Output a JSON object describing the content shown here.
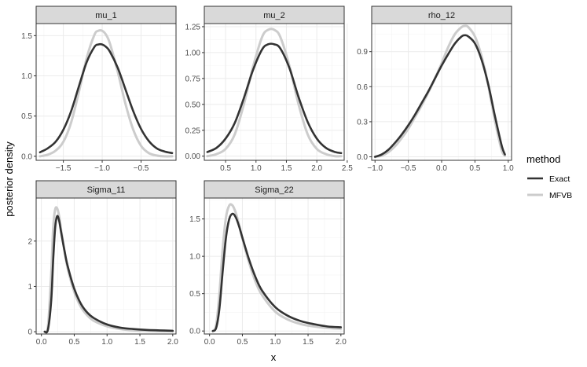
{
  "chart_data": {
    "type": "line",
    "xlabel": "x",
    "ylabel": "posterior density",
    "legend": {
      "title": "method",
      "placement": "right",
      "entries": [
        {
          "name": "Exact",
          "color": "#333333"
        },
        {
          "name": "MFVB",
          "color": "#cccccc"
        }
      ]
    },
    "grid": true,
    "panels": [
      {
        "title": "mu_1",
        "xlim": [
          -1.85,
          -0.05
        ],
        "ylim": [
          -0.05,
          1.65
        ],
        "xticks": [
          -1.5,
          -1.0,
          -0.5
        ],
        "xtick_labels": [
          "−1.5",
          "−1.0",
          "−0.5"
        ],
        "yticks": [
          0.0,
          0.5,
          1.0,
          1.5
        ],
        "ytick_labels": [
          "0.0",
          "0.5",
          "1.0",
          "1.5"
        ],
        "series": [
          {
            "name": "Exact",
            "x": [
              -1.8,
              -1.7,
              -1.6,
              -1.5,
              -1.4,
              -1.3,
              -1.2,
              -1.1,
              -1.05,
              -1.0,
              -0.95,
              -0.9,
              -0.8,
              -0.7,
              -0.6,
              -0.5,
              -0.4,
              -0.3,
              -0.2,
              -0.1
            ],
            "y": [
              0.05,
              0.1,
              0.18,
              0.33,
              0.56,
              0.87,
              1.17,
              1.36,
              1.39,
              1.39,
              1.36,
              1.3,
              1.1,
              0.83,
              0.56,
              0.34,
              0.19,
              0.1,
              0.06,
              0.04
            ]
          },
          {
            "name": "MFVB",
            "x": [
              -1.8,
              -1.7,
              -1.6,
              -1.5,
              -1.4,
              -1.3,
              -1.2,
              -1.1,
              -1.05,
              -1.0,
              -0.95,
              -0.9,
              -0.8,
              -0.7,
              -0.6,
              -0.5,
              -0.4,
              -0.3,
              -0.2,
              -0.1
            ],
            "y": [
              0.0,
              0.02,
              0.07,
              0.18,
              0.42,
              0.8,
              1.22,
              1.51,
              1.56,
              1.56,
              1.51,
              1.4,
              1.05,
              0.65,
              0.33,
              0.13,
              0.04,
              0.01,
              0.0,
              0.0
            ]
          }
        ]
      },
      {
        "title": "mu_2",
        "xlim": [
          0.15,
          2.45
        ],
        "ylim": [
          -0.04,
          1.28
        ],
        "xticks": [
          0.5,
          1.0,
          1.5,
          2.0,
          2.5
        ],
        "xtick_labels": [
          "0.5",
          "1.0",
          "1.5",
          "2.0",
          "2.5"
        ],
        "yticks": [
          0.0,
          0.25,
          0.5,
          0.75,
          1.0,
          1.25
        ],
        "ytick_labels": [
          "0.00",
          "0.25",
          "0.50",
          "0.75",
          "1.00",
          "1.25"
        ],
        "series": [
          {
            "name": "Exact",
            "x": [
              0.2,
              0.35,
              0.5,
              0.65,
              0.8,
              0.95,
              1.1,
              1.2,
              1.3,
              1.4,
              1.55,
              1.7,
              1.85,
              2.0,
              2.15,
              2.3,
              2.4
            ],
            "y": [
              0.04,
              0.08,
              0.17,
              0.32,
              0.56,
              0.83,
              1.03,
              1.08,
              1.08,
              1.04,
              0.85,
              0.57,
              0.33,
              0.17,
              0.08,
              0.04,
              0.03
            ]
          },
          {
            "name": "MFVB",
            "x": [
              0.2,
              0.35,
              0.5,
              0.65,
              0.8,
              0.95,
              1.1,
              1.2,
              1.3,
              1.4,
              1.55,
              1.7,
              1.85,
              2.0,
              2.15,
              2.3,
              2.4
            ],
            "y": [
              0.0,
              0.02,
              0.07,
              0.21,
              0.5,
              0.86,
              1.15,
              1.22,
              1.22,
              1.15,
              0.87,
              0.5,
              0.21,
              0.07,
              0.02,
              0.0,
              0.0
            ]
          }
        ]
      },
      {
        "title": "rho_12",
        "xlim": [
          -1.05,
          1.05
        ],
        "ylim": [
          -0.03,
          1.14
        ],
        "xticks": [
          -1.0,
          -0.5,
          0.0,
          0.5,
          1.0
        ],
        "xtick_labels": [
          "−1.0",
          "−0.5",
          "0.0",
          "0.5",
          "1.0"
        ],
        "yticks": [
          0.0,
          0.3,
          0.6,
          0.9
        ],
        "ytick_labels": [
          "0.0",
          "0.3",
          "0.6",
          "0.9"
        ],
        "series": [
          {
            "name": "Exact",
            "x": [
              -1.0,
              -0.9,
              -0.8,
              -0.7,
              -0.6,
              -0.5,
              -0.4,
              -0.3,
              -0.2,
              -0.1,
              0.0,
              0.1,
              0.2,
              0.3,
              0.35,
              0.4,
              0.5,
              0.6,
              0.7,
              0.8,
              0.9,
              0.95
            ],
            "y": [
              0.0,
              0.02,
              0.06,
              0.12,
              0.19,
              0.27,
              0.36,
              0.46,
              0.56,
              0.67,
              0.78,
              0.88,
              0.97,
              1.03,
              1.04,
              1.03,
              0.97,
              0.83,
              0.62,
              0.35,
              0.1,
              0.02
            ]
          },
          {
            "name": "MFVB",
            "x": [
              -1.0,
              -0.9,
              -0.8,
              -0.7,
              -0.6,
              -0.5,
              -0.4,
              -0.3,
              -0.2,
              -0.1,
              0.0,
              0.1,
              0.2,
              0.3,
              0.35,
              0.4,
              0.5,
              0.6,
              0.7,
              0.8,
              0.9,
              0.95
            ],
            "y": [
              0.0,
              0.01,
              0.04,
              0.09,
              0.16,
              0.24,
              0.34,
              0.44,
              0.55,
              0.67,
              0.8,
              0.94,
              1.05,
              1.11,
              1.12,
              1.11,
              1.03,
              0.86,
              0.61,
              0.31,
              0.06,
              0.01
            ]
          }
        ]
      },
      {
        "title": "Sigma_11",
        "xlim": [
          -0.08,
          2.05
        ],
        "ylim": [
          -0.05,
          2.95
        ],
        "xticks": [
          0.0,
          0.5,
          1.0,
          1.5,
          2.0
        ],
        "xtick_labels": [
          "0.0",
          "0.5",
          "1.0",
          "1.5",
          "2.0"
        ],
        "yticks": [
          0,
          1,
          2
        ],
        "ytick_labels": [
          "0",
          "1",
          "2"
        ],
        "series": [
          {
            "name": "Exact",
            "x": [
              0.05,
              0.1,
              0.15,
              0.18,
              0.21,
              0.24,
              0.27,
              0.3,
              0.35,
              0.4,
              0.5,
              0.6,
              0.7,
              0.8,
              1.0,
              1.2,
              1.4,
              1.6,
              1.8,
              2.0
            ],
            "y": [
              0.0,
              0.05,
              0.7,
              1.6,
              2.3,
              2.55,
              2.45,
              2.2,
              1.8,
              1.45,
              0.95,
              0.62,
              0.42,
              0.3,
              0.16,
              0.09,
              0.06,
              0.04,
              0.03,
              0.02
            ]
          },
          {
            "name": "MFVB",
            "x": [
              0.05,
              0.1,
              0.15,
              0.18,
              0.21,
              0.24,
              0.27,
              0.3,
              0.35,
              0.4,
              0.5,
              0.6,
              0.7,
              0.8,
              1.0,
              1.2,
              1.4,
              1.6,
              1.8,
              2.0
            ],
            "y": [
              0.0,
              0.12,
              1.3,
              2.3,
              2.7,
              2.72,
              2.55,
              2.25,
              1.8,
              1.4,
              0.88,
              0.55,
              0.36,
              0.24,
              0.12,
              0.06,
              0.03,
              0.02,
              0.01,
              0.01
            ]
          }
        ]
      },
      {
        "title": "Sigma_22",
        "xlim": [
          -0.08,
          2.05
        ],
        "ylim": [
          -0.04,
          1.78
        ],
        "xticks": [
          0.0,
          0.5,
          1.0,
          1.5,
          2.0
        ],
        "xtick_labels": [
          "0.0",
          "0.5",
          "1.0",
          "1.5",
          "2.0"
        ],
        "yticks": [
          0.0,
          0.5,
          1.0,
          1.5
        ],
        "ytick_labels": [
          "0.0",
          "0.5",
          "1.0",
          "1.5"
        ],
        "series": [
          {
            "name": "Exact",
            "x": [
              0.05,
              0.1,
              0.15,
              0.2,
              0.25,
              0.3,
              0.35,
              0.4,
              0.45,
              0.5,
              0.6,
              0.7,
              0.8,
              1.0,
              1.2,
              1.4,
              1.6,
              1.8,
              2.0
            ],
            "y": [
              0.0,
              0.04,
              0.3,
              0.8,
              1.25,
              1.5,
              1.57,
              1.52,
              1.4,
              1.25,
              0.96,
              0.72,
              0.54,
              0.32,
              0.2,
              0.13,
              0.09,
              0.06,
              0.05
            ]
          },
          {
            "name": "MFVB",
            "x": [
              0.05,
              0.1,
              0.15,
              0.2,
              0.25,
              0.3,
              0.35,
              0.4,
              0.45,
              0.5,
              0.6,
              0.7,
              0.8,
              1.0,
              1.2,
              1.4,
              1.6,
              1.8,
              2.0
            ],
            "y": [
              0.0,
              0.08,
              0.5,
              1.1,
              1.52,
              1.68,
              1.68,
              1.58,
              1.42,
              1.24,
              0.92,
              0.66,
              0.48,
              0.26,
              0.15,
              0.09,
              0.06,
              0.04,
              0.03
            ]
          }
        ]
      }
    ]
  }
}
